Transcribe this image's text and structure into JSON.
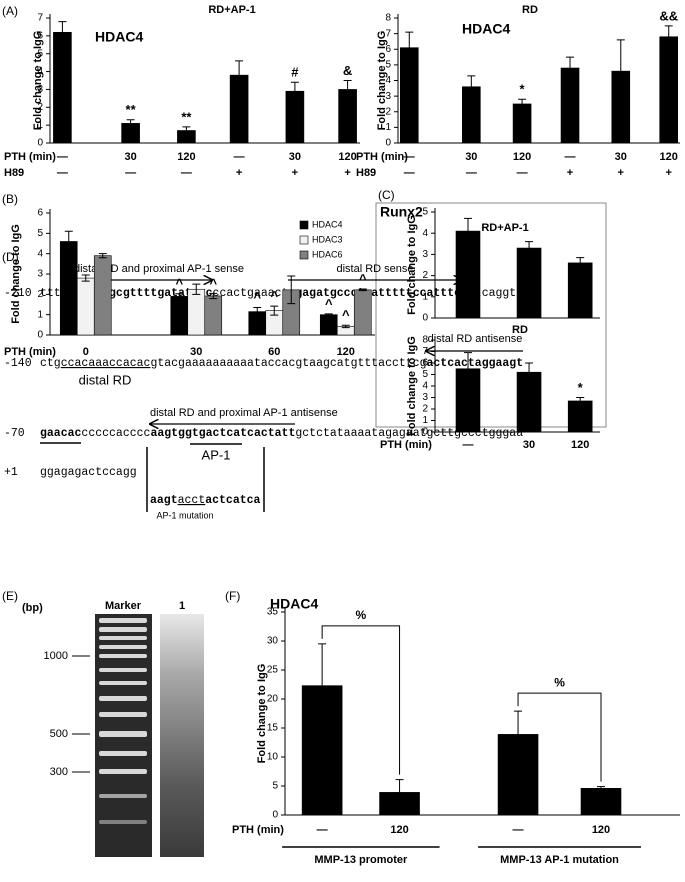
{
  "chart_data": [
    {
      "type": "bar",
      "panel": "(A)",
      "title": "RD+AP-1",
      "label": "HDAC4",
      "ylabel": "Fold change to IgG",
      "xlabel": "PTH (min)",
      "categories": [
        "—",
        "30",
        "120",
        "—",
        "30",
        "120"
      ],
      "rows": [
        {
          "label": "H89",
          "values": [
            "—",
            "—",
            "—",
            "+",
            "+",
            "+"
          ]
        }
      ],
      "values": [
        6.2,
        1.1,
        0.7,
        3.8,
        2.9,
        3.0
      ],
      "errors": [
        0.6,
        0.2,
        0.2,
        0.8,
        0.5,
        0.5
      ],
      "annotations": [
        null,
        "**",
        "**",
        null,
        "#",
        "&"
      ],
      "color": "#000000",
      "ylim": [
        0,
        7
      ],
      "yticks": [
        0,
        1,
        2,
        3,
        4,
        5,
        6,
        7
      ]
    },
    {
      "type": "bar",
      "title": "RD",
      "label": "HDAC4",
      "ylabel": "Fold change to IgG",
      "xlabel": "PTH (min)",
      "categories": [
        "—",
        "30",
        "120",
        "—",
        "30",
        "120"
      ],
      "rows": [
        {
          "label": "H89",
          "values": [
            "—",
            "—",
            "—",
            "+",
            "+",
            "+"
          ]
        }
      ],
      "values": [
        6.1,
        3.6,
        2.5,
        4.8,
        4.6,
        6.8
      ],
      "errors": [
        1.0,
        0.7,
        0.3,
        0.7,
        2.0,
        0.7
      ],
      "annotations": [
        null,
        null,
        "*",
        null,
        null,
        "&&"
      ],
      "color": "#000000",
      "ylim": [
        0,
        8
      ],
      "yticks": [
        0,
        1,
        2,
        3,
        4,
        5,
        6,
        7,
        8
      ]
    },
    {
      "type": "grouped_bar",
      "panel": "(B)",
      "ylabel": "Fold change to IgG",
      "xlabel": "PTH (min)",
      "categories": [
        "0",
        "30",
        "60",
        "120"
      ],
      "series": [
        {
          "name": "HDAC4",
          "color": "#000000",
          "values": [
            4.6,
            1.9,
            1.15,
            1.0
          ],
          "errors": [
            0.5,
            0.13,
            0.2,
            0.04
          ],
          "annotations": [
            null,
            "^",
            "^",
            "^"
          ]
        },
        {
          "name": "HDAC3",
          "color": "#f2f2f2",
          "values": [
            2.8,
            2.25,
            1.2,
            0.42
          ],
          "errors": [
            0.15,
            0.25,
            0.22,
            0.06
          ],
          "annotations": [
            null,
            null,
            "^",
            "^"
          ]
        },
        {
          "name": "HDAC6",
          "color": "#808080",
          "values": [
            3.9,
            1.92,
            2.22,
            2.22
          ],
          "errors": [
            0.1,
            0.13,
            0.68,
            0.04
          ],
          "annotations": [
            null,
            "^",
            null,
            "^"
          ]
        }
      ],
      "ylim": [
        0,
        6
      ],
      "yticks": [
        0,
        1,
        2,
        3,
        4,
        5,
        6
      ],
      "legend": "upper right"
    },
    {
      "type": "bar",
      "panel": "(C)",
      "label": "Runx2",
      "title": "RD+AP-1",
      "ylabel": "Fold change to IgG",
      "values": [
        4.1,
        3.3,
        2.6
      ],
      "errors": [
        0.6,
        0.3,
        0.25
      ],
      "color": "#000000",
      "ylim": [
        0,
        5
      ],
      "yticks": [
        0,
        1,
        2,
        3,
        4,
        5
      ]
    },
    {
      "type": "bar",
      "title": "RD",
      "ylabel": "Fold change to IgG",
      "xlabel": "PTH (min)",
      "categories": [
        "—",
        "30",
        "120"
      ],
      "values": [
        5.5,
        5.2,
        2.7
      ],
      "errors": [
        1.4,
        0.8,
        0.3
      ],
      "annotations": [
        null,
        null,
        "*"
      ],
      "color": "#000000",
      "ylim": [
        0,
        8
      ],
      "yticks": [
        0,
        1,
        2,
        3,
        4,
        5,
        6,
        7,
        8
      ]
    },
    {
      "type": "bar",
      "panel": "(F)",
      "label": "HDAC4",
      "ylabel": "Fold change to IgG",
      "xlabel": "PTH (min)",
      "categories": [
        "—",
        "120",
        "—",
        "120"
      ],
      "values": [
        22.3,
        3.9,
        13.9,
        4.6
      ],
      "errors": [
        7.2,
        2.2,
        4.0,
        0.3
      ],
      "brackets": [
        "%",
        "%"
      ],
      "groups": [
        "MMP-13 promoter",
        "MMP-13 AP-1 mutation"
      ],
      "color": "#000000",
      "ylim": [
        0,
        35
      ],
      "yticks": [
        0,
        5,
        10,
        15,
        20,
        25,
        30,
        35
      ]
    }
  ],
  "sequence": {
    "panel": "(D)",
    "lines": [
      {
        "position": "-210",
        "segments": [
          {
            "text": "tttgc"
          },
          {
            "text": "cagatgcgttttgatatgcc",
            "bold": true
          },
          {
            "text": "ccactgaaact"
          },
          {
            "text": "agagatgccctaatttttccatttc",
            "bold": true
          },
          {
            "text": "cctcaggtt"
          }
        ]
      },
      {
        "position": "-140",
        "segments": [
          {
            "text": "ctg"
          },
          {
            "text": "ccacaaaccacac",
            "underline": true
          },
          {
            "text": "gtacgaaaaaaaaaataccacgtaagcatgtttaccttcg"
          },
          {
            "text": "actcactaggaagt",
            "bold": true
          }
        ]
      },
      {
        "position": "-70",
        "segments": [
          {
            "text": "gaacac",
            "bold": true
          },
          {
            "text": "cccccacccc"
          },
          {
            "text": "aagtggtgactcatcactatt",
            "bold": true
          },
          {
            "text": "gctctataaaatagagaatgcttgccctgggaa"
          }
        ]
      },
      {
        "position": "+1",
        "segments": [
          {
            "text": "ggagagactccagg"
          }
        ]
      }
    ],
    "mutation": {
      "segments": [
        {
          "text": "aagt",
          "bold": true
        },
        {
          "text": "acct",
          "underline": true
        },
        {
          "text": "actcatca",
          "bold": true
        }
      ],
      "label": "AP-1 mutation"
    },
    "annotations": [
      "distal RD and proximal AP-1 sense",
      "distal RD sense",
      "distal RD antisense",
      "distal RD",
      "distal RD and proximal AP-1 antisense",
      "AP-1"
    ]
  },
  "gel": {
    "panel": "(E)",
    "unit": "(bp)",
    "lanes": [
      "Marker",
      "1"
    ],
    "size_labels": [
      "1000",
      "500",
      "300"
    ]
  }
}
